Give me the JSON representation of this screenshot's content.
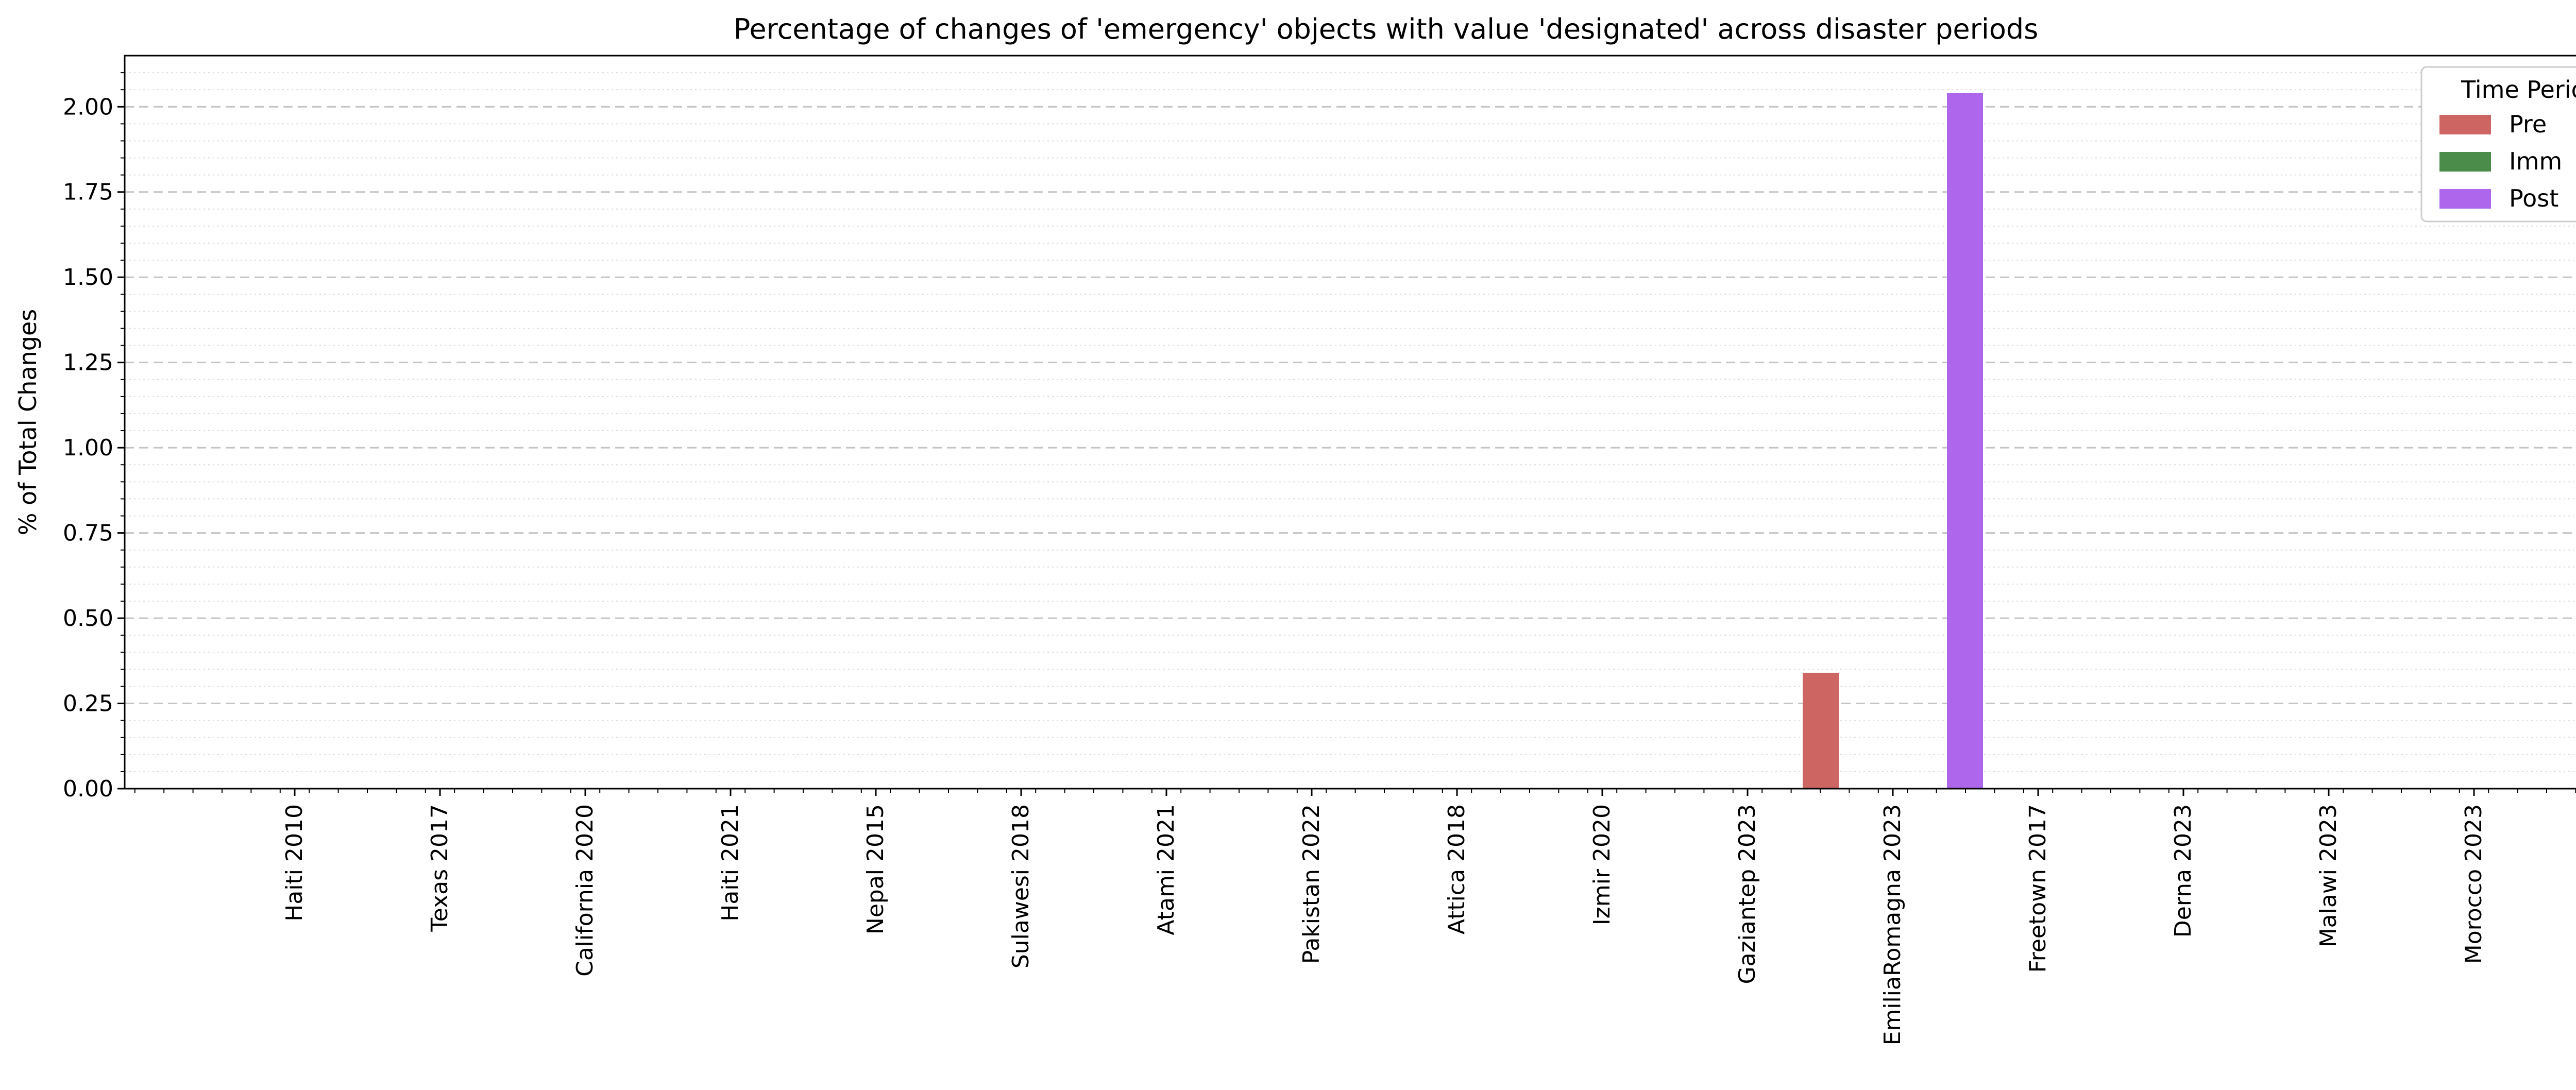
{
  "chart_data": {
    "type": "bar",
    "title": "Percentage of changes of 'emergency' objects with value 'designated' across disaster periods",
    "xlabel": "",
    "ylabel": "% of Total Changes",
    "ylim": [
      0,
      2.15
    ],
    "yticks": [
      0.0,
      0.25,
      0.5,
      0.75,
      1.0,
      1.25,
      1.5,
      1.75,
      2.0
    ],
    "ytick_labels": [
      "0.00",
      "0.25",
      "0.50",
      "0.75",
      "1.00",
      "1.25",
      "1.50",
      "1.75",
      "2.00"
    ],
    "grid": "major dashed, minor dotted (y-axis)",
    "legend_position": "top-right",
    "legend_title": "Time Period",
    "categories": [
      "Haiti 2010",
      "Texas 2017",
      "California 2020",
      "Haiti 2021",
      "Nepal 2015",
      "Sulawesi 2018",
      "Atami 2021",
      "Pakistan 2022",
      "Attica 2018",
      "Izmir 2020",
      "Gaziantep 2023",
      "EmiliaRomagna 2023",
      "Freetown 2017",
      "Derna 2023",
      "Malawi 2023",
      "Morocco 2023"
    ],
    "series": [
      {
        "name": "Pre",
        "color": "#cd6662",
        "values": [
          0,
          0,
          0,
          0,
          0,
          0,
          0,
          0,
          0,
          0,
          0,
          0.34,
          0,
          0,
          0,
          0
        ]
      },
      {
        "name": "Imm",
        "color": "#4c8c4a",
        "values": [
          0,
          0,
          0,
          0,
          0,
          0,
          0,
          0,
          0,
          0,
          0,
          0,
          0,
          0,
          0,
          0
        ]
      },
      {
        "name": "Post",
        "color": "#ad66ec",
        "values": [
          0,
          0,
          0,
          0,
          0,
          0,
          0,
          0,
          0,
          0,
          0,
          2.04,
          0,
          0,
          0,
          0
        ]
      }
    ]
  }
}
